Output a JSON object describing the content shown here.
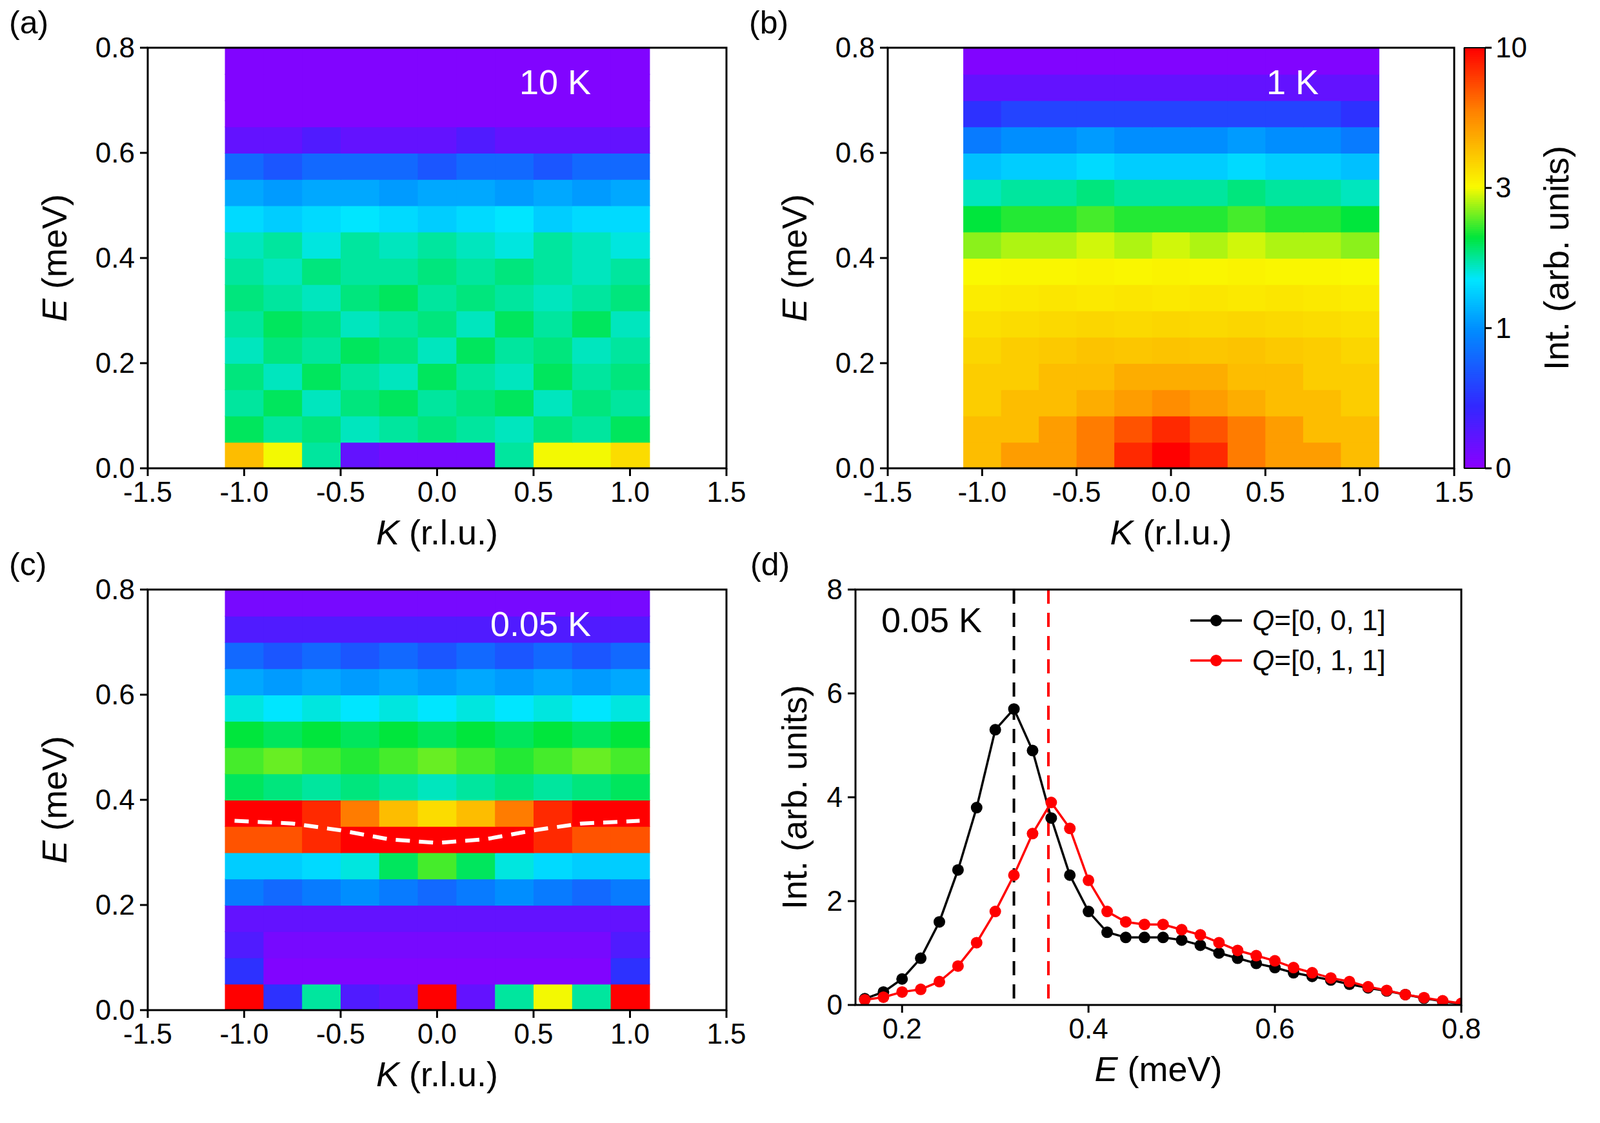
{
  "chart_data": [
    {
      "type": "heatmap",
      "panel": "(a)",
      "title": "10 K",
      "x_label": "K (r.l.u.)",
      "y_label": "E (meV)",
      "xlim": [
        -1.5,
        1.5
      ],
      "ylim": [
        0,
        0.8
      ],
      "xticks": [
        -1.5,
        {
          "value": -1,
          "label": "-1.0"
        },
        -0.5,
        {
          "value": 0,
          "label": "0.0"
        },
        0.5,
        {
          "value": 1,
          "label": "1.0"
        },
        1.5
      ],
      "yticks": [
        {
          "value": 0,
          "label": "0.0"
        },
        0.2,
        0.4,
        0.6,
        0.8
      ],
      "x_bins": [
        -1.1,
        -0.9,
        -0.7,
        -0.5,
        -0.3,
        -0.1,
        0.1,
        0.3,
        0.5,
        0.7,
        0.9,
        1.1
      ],
      "y_bins": [
        0,
        0.05,
        0.1,
        0.15,
        0.2,
        0.25,
        0.3,
        0.35,
        0.4,
        0.45,
        0.5,
        0.55,
        0.6,
        0.65,
        0.7,
        0.75,
        0.8
      ],
      "cells": [
        [
          5,
          3,
          2,
          0.2,
          0.1,
          0.1,
          0.1,
          2,
          3,
          3,
          4
        ],
        [
          2.2,
          2,
          2.1,
          1.9,
          2,
          2.1,
          2,
          1.9,
          2.1,
          2,
          2.2
        ],
        [
          2,
          2.2,
          1.9,
          2.1,
          2.2,
          2,
          2.1,
          2.2,
          1.9,
          2.1,
          2
        ],
        [
          2.1,
          1.9,
          2.2,
          2,
          1.9,
          2.2,
          2,
          1.9,
          2.2,
          2,
          2.1
        ],
        [
          1.9,
          2.1,
          2,
          2.2,
          2.1,
          1.9,
          2.2,
          2,
          2.1,
          1.9,
          2
        ],
        [
          2,
          2.2,
          2.1,
          1.9,
          2,
          2.1,
          1.9,
          2.2,
          2,
          2.2,
          1.9
        ],
        [
          2.1,
          2,
          1.9,
          2.1,
          2.2,
          2,
          2.1,
          2,
          1.9,
          2,
          2.1
        ],
        [
          2,
          1.9,
          2.1,
          2,
          2,
          2.1,
          2,
          2.1,
          2,
          1.9,
          2
        ],
        [
          1.9,
          2,
          1.8,
          2,
          1.9,
          2,
          1.9,
          1.8,
          2,
          1.9,
          1.8
        ],
        [
          1.6,
          1.5,
          1.6,
          1.7,
          1.6,
          1.5,
          1.6,
          1.7,
          1.5,
          1.6,
          1.6
        ],
        [
          1.2,
          1.1,
          1.2,
          1.2,
          1.1,
          1.2,
          1.2,
          1.1,
          1.2,
          1.1,
          1.2
        ],
        [
          0.8,
          0.7,
          0.8,
          0.8,
          0.8,
          0.7,
          0.8,
          0.8,
          0.7,
          0.8,
          0.8
        ],
        [
          0.2,
          0.2,
          0.3,
          0.2,
          0.2,
          0.2,
          0.3,
          0.2,
          0.2,
          0.2,
          0.2
        ],
        [
          0.05,
          0.05,
          0.05,
          0.05,
          0.05,
          0.05,
          0.05,
          0.05,
          0.05,
          0.05,
          0.05
        ],
        [
          0.05,
          0.05,
          0.05,
          0.05,
          0.05,
          0.05,
          0.05,
          0.05,
          0.05,
          0.05,
          0.05
        ],
        [
          0.05,
          0.05,
          0.05,
          0.05,
          0.05,
          0.05,
          0.05,
          0.05,
          0.05,
          0.05,
          0.05
        ]
      ]
    },
    {
      "type": "heatmap",
      "panel": "(b)",
      "title": "1 K",
      "x_label": "K (r.l.u.)",
      "y_label": "E (meV)",
      "xlim": [
        -1.5,
        1.5
      ],
      "ylim": [
        0,
        0.8
      ],
      "xticks": [
        -1.5,
        {
          "value": -1,
          "label": "-1.0"
        },
        -0.5,
        {
          "value": 0,
          "label": "0.0"
        },
        0.5,
        {
          "value": 1,
          "label": "1.0"
        },
        1.5
      ],
      "yticks": [
        {
          "value": 0,
          "label": "0.0"
        },
        0.2,
        0.4,
        0.6,
        0.8
      ],
      "x_bins": [
        -1.1,
        -0.9,
        -0.7,
        -0.5,
        -0.3,
        -0.1,
        0.1,
        0.3,
        0.5,
        0.7,
        0.9,
        1.1
      ],
      "y_bins": [
        0,
        0.05,
        0.1,
        0.15,
        0.2,
        0.25,
        0.3,
        0.35,
        0.4,
        0.45,
        0.5,
        0.55,
        0.6,
        0.65,
        0.7,
        0.75,
        0.8
      ],
      "cells": [
        [
          5,
          6,
          6,
          7,
          9,
          10,
          9,
          7,
          6,
          6,
          5
        ],
        [
          5,
          5,
          6,
          7,
          8,
          9,
          8,
          7,
          6,
          5,
          5
        ],
        [
          4.5,
          5,
          5,
          5.5,
          6,
          6.5,
          6,
          5.5,
          5,
          5,
          4.5
        ],
        [
          4.5,
          4.5,
          5,
          5,
          5.5,
          5.5,
          5.5,
          5,
          5,
          4.5,
          4.5
        ],
        [
          4.2,
          4.5,
          4.6,
          4.8,
          4.7,
          4.8,
          4.7,
          4.8,
          4.6,
          4.5,
          4.2
        ],
        [
          3.9,
          4,
          4.1,
          4.2,
          4.1,
          4.2,
          4.1,
          4.2,
          4.1,
          4,
          3.9
        ],
        [
          3.5,
          3.6,
          3.7,
          3.6,
          3.7,
          3.6,
          3.7,
          3.6,
          3.7,
          3.6,
          3.5
        ],
        [
          3.1,
          3.2,
          3.2,
          3.3,
          3.2,
          3.3,
          3.2,
          3.3,
          3.2,
          3.2,
          3.1
        ],
        [
          2.7,
          2.8,
          2.8,
          2.9,
          2.8,
          2.9,
          2.8,
          2.9,
          2.8,
          2.8,
          2.7
        ],
        [
          2.3,
          2.4,
          2.4,
          2.5,
          2.4,
          2.4,
          2.4,
          2.5,
          2.4,
          2.4,
          2.3
        ],
        [
          1.9,
          2,
          2,
          2.1,
          2,
          2,
          2,
          2.1,
          2,
          2,
          1.9
        ],
        [
          1.4,
          1.5,
          1.5,
          1.6,
          1.5,
          1.5,
          1.5,
          1.6,
          1.5,
          1.5,
          1.4
        ],
        [
          0.9,
          1,
          1,
          1.1,
          1,
          1,
          1,
          1.1,
          1,
          1,
          0.9
        ],
        [
          0.5,
          0.6,
          0.6,
          0.6,
          0.6,
          0.6,
          0.6,
          0.6,
          0.6,
          0.6,
          0.5
        ],
        [
          0.2,
          0.2,
          0.2,
          0.2,
          0.2,
          0.2,
          0.2,
          0.2,
          0.2,
          0.2,
          0.2
        ],
        [
          0.05,
          0.05,
          0.05,
          0.05,
          0.05,
          0.05,
          0.05,
          0.05,
          0.05,
          0.05,
          0.05
        ]
      ],
      "colorbar": {
        "label": "Int. (arb. units)",
        "range": [
          0,
          10
        ],
        "ticks": [
          0,
          1,
          3,
          10
        ]
      }
    },
    {
      "type": "heatmap",
      "panel": "(c)",
      "title": "0.05 K",
      "x_label": "K (r.l.u.)",
      "y_label": "E (meV)",
      "xlim": [
        -1.5,
        1.5
      ],
      "ylim": [
        0,
        0.8
      ],
      "xticks": [
        -1.5,
        {
          "value": -1,
          "label": "-1.0"
        },
        -0.5,
        {
          "value": 0,
          "label": "0.0"
        },
        0.5,
        {
          "value": 1,
          "label": "1.0"
        },
        1.5
      ],
      "yticks": [
        {
          "value": 0,
          "label": "0.0"
        },
        0.2,
        0.4,
        0.6,
        0.8
      ],
      "x_bins": [
        -1.1,
        -0.9,
        -0.7,
        -0.5,
        -0.3,
        -0.1,
        0.1,
        0.3,
        0.5,
        0.7,
        0.9,
        1.1
      ],
      "y_bins": [
        0,
        0.05,
        0.1,
        0.15,
        0.2,
        0.25,
        0.3,
        0.35,
        0.4,
        0.45,
        0.5,
        0.55,
        0.6,
        0.65,
        0.7,
        0.75,
        0.8
      ],
      "cells": [
        [
          10,
          0.5,
          2,
          0.3,
          0.2,
          10,
          0.2,
          2,
          3,
          2,
          10
        ],
        [
          0.5,
          0.05,
          0.05,
          0.05,
          0.05,
          0.05,
          0.05,
          0.05,
          0.05,
          0.05,
          0.5
        ],
        [
          0.3,
          0.1,
          0.1,
          0.1,
          0.1,
          0.1,
          0.1,
          0.1,
          0.1,
          0.1,
          0.3
        ],
        [
          0.2,
          0.2,
          0.2,
          0.2,
          0.2,
          0.2,
          0.2,
          0.2,
          0.2,
          0.2,
          0.2
        ],
        [
          0.9,
          0.8,
          0.9,
          1,
          0.9,
          0.8,
          0.9,
          1,
          0.9,
          0.8,
          0.9
        ],
        [
          1.5,
          1.5,
          1.6,
          1.8,
          2.2,
          2.5,
          2.2,
          1.8,
          1.6,
          1.5,
          1.5
        ],
        [
          8,
          8,
          9,
          10,
          10,
          10,
          10,
          10,
          9,
          8,
          8
        ],
        [
          10,
          10,
          9,
          7,
          5,
          4,
          5,
          7,
          9,
          10,
          10
        ],
        [
          2.2,
          2.1,
          2,
          2.1,
          2,
          1.9,
          2,
          2.1,
          2,
          2.1,
          2.2
        ],
        [
          2.5,
          2.6,
          2.5,
          2.4,
          2.5,
          2.6,
          2.5,
          2.4,
          2.5,
          2.6,
          2.5
        ],
        [
          2.3,
          2.2,
          2.3,
          2.2,
          2.3,
          2.2,
          2.3,
          2.2,
          2.3,
          2.2,
          2.3
        ],
        [
          1.8,
          1.7,
          1.8,
          1.7,
          1.8,
          1.7,
          1.8,
          1.7,
          1.8,
          1.7,
          1.8
        ],
        [
          1.2,
          1.1,
          1.2,
          1.1,
          1.2,
          1.1,
          1.2,
          1.1,
          1.2,
          1.1,
          1.2
        ],
        [
          0.8,
          0.7,
          0.8,
          0.7,
          0.8,
          0.7,
          0.8,
          0.7,
          0.8,
          0.7,
          0.8
        ],
        [
          0.3,
          0.3,
          0.3,
          0.3,
          0.3,
          0.3,
          0.3,
          0.3,
          0.3,
          0.3,
          0.3
        ],
        [
          0.1,
          0.1,
          0.1,
          0.1,
          0.1,
          0.1,
          0.1,
          0.1,
          0.1,
          0.1,
          0.1
        ]
      ],
      "series": [
        {
          "type": "line",
          "color": "#ffffff",
          "line_style": "dashed",
          "x": [
            -1.05,
            -0.75,
            -0.5,
            -0.25,
            0,
            0.25,
            0.5,
            0.75,
            1.05
          ],
          "values": [
            0.36,
            0.355,
            0.342,
            0.325,
            0.318,
            0.325,
            0.342,
            0.355,
            0.36
          ]
        }
      ]
    },
    {
      "type": "line",
      "panel": "(d)",
      "annotation": "0.05 K",
      "x_label": "E (meV)",
      "y_label": "Int. (arb. units)",
      "xlim": [
        0.15,
        0.8
      ],
      "ylim": [
        0,
        8
      ],
      "xticks": [
        0.2,
        0.4,
        0.6,
        0.8
      ],
      "yticks": [
        0,
        2,
        4,
        6,
        8
      ],
      "legend": "upper right",
      "marker": "circle",
      "x": [
        0.16,
        0.18,
        0.2,
        0.22,
        0.24,
        0.26,
        0.28,
        0.3,
        0.32,
        0.34,
        0.36,
        0.38,
        0.4,
        0.42,
        0.44,
        0.46,
        0.48,
        0.5,
        0.52,
        0.54,
        0.56,
        0.58,
        0.6,
        0.62,
        0.64,
        0.66,
        0.68,
        0.7,
        0.72,
        0.74,
        0.76,
        0.78,
        0.8
      ],
      "series": [
        {
          "name": "Q=[0, 0, 1]",
          "color": "#000000",
          "values": [
            0.12,
            0.25,
            0.5,
            0.9,
            1.6,
            2.6,
            3.8,
            5.3,
            5.7,
            4.9,
            3.6,
            2.5,
            1.8,
            1.4,
            1.3,
            1.3,
            1.3,
            1.25,
            1.15,
            1.0,
            0.9,
            0.8,
            0.72,
            0.62,
            0.55,
            0.48,
            0.4,
            0.33,
            0.27,
            0.2,
            0.13,
            0.07,
            0.02
          ]
        },
        {
          "name": "Q=[0, 1, 1]",
          "color": "#ff0000",
          "values": [
            0.1,
            0.15,
            0.25,
            0.3,
            0.45,
            0.75,
            1.2,
            1.8,
            2.5,
            3.3,
            3.9,
            3.4,
            2.4,
            1.8,
            1.6,
            1.55,
            1.55,
            1.45,
            1.35,
            1.2,
            1.05,
            0.95,
            0.85,
            0.72,
            0.62,
            0.52,
            0.45,
            0.35,
            0.28,
            0.2,
            0.14,
            0.08,
            0.03
          ]
        }
      ],
      "reference_lines": [
        {
          "x": 0.32,
          "color": "#000000",
          "line_style": "dashed"
        },
        {
          "x": 0.357,
          "color": "#ff0000",
          "line_style": "dashed"
        }
      ]
    }
  ]
}
